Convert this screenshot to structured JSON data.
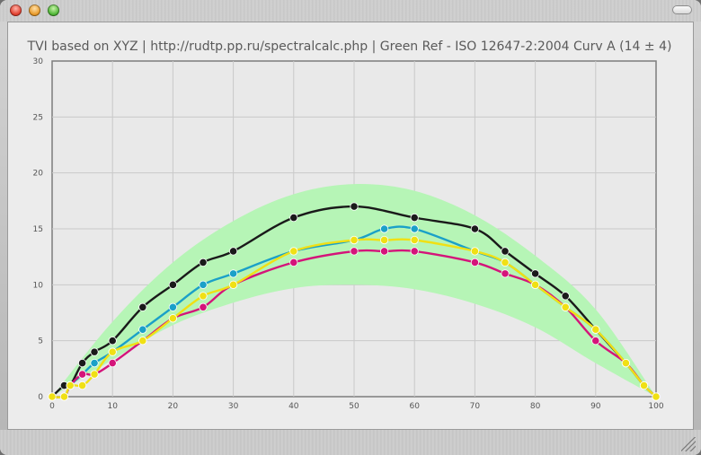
{
  "window": {
    "buttons": [
      "close",
      "minimize",
      "zoom"
    ]
  },
  "chart_data": {
    "type": "line",
    "title": "TVI based on XYZ | http://rudtp.pp.ru/spectralcalc.php | Green Ref - ISO 12647-2:2004 Curv A (14 ± 4)",
    "xlabel": "",
    "ylabel": "",
    "xlim": [
      0,
      100
    ],
    "ylim": [
      0,
      30
    ],
    "x_ticks": [
      0,
      10,
      20,
      30,
      40,
      50,
      60,
      70,
      80,
      90,
      100
    ],
    "y_ticks": [
      0,
      5,
      10,
      15,
      20,
      25,
      30
    ],
    "grid": true,
    "legend": "none",
    "tolerance_band": {
      "color": "#b6f5b6",
      "x": [
        0,
        10,
        20,
        30,
        40,
        50,
        60,
        70,
        80,
        90,
        100
      ],
      "lower": [
        0,
        3.3,
        6.4,
        8.4,
        9.7,
        10.0,
        9.6,
        8.3,
        6.2,
        3.0,
        0
      ],
      "upper": [
        0,
        6.7,
        12.0,
        15.7,
        18.1,
        19.0,
        18.4,
        16.2,
        12.6,
        7.8,
        0
      ]
    },
    "series": [
      {
        "color": "#1a1a1a",
        "points": [
          [
            0,
            0
          ],
          [
            2,
            1
          ],
          [
            3,
            1
          ],
          [
            5,
            3
          ],
          [
            7,
            4
          ],
          [
            10,
            5
          ],
          [
            15,
            8
          ],
          [
            20,
            10
          ],
          [
            25,
            12
          ],
          [
            30,
            13
          ],
          [
            40,
            16
          ],
          [
            50,
            17
          ],
          [
            60,
            16
          ],
          [
            70,
            15
          ],
          [
            75,
            13
          ],
          [
            80,
            11
          ],
          [
            85,
            9
          ],
          [
            90,
            6
          ],
          [
            95,
            3
          ],
          [
            98,
            1
          ],
          [
            100,
            0
          ]
        ]
      },
      {
        "color": "#1aa0c8",
        "points": [
          [
            0,
            0
          ],
          [
            2,
            0
          ],
          [
            3,
            1
          ],
          [
            5,
            2
          ],
          [
            7,
            3
          ],
          [
            10,
            4
          ],
          [
            15,
            6
          ],
          [
            20,
            8
          ],
          [
            25,
            10
          ],
          [
            30,
            11
          ],
          [
            40,
            13
          ],
          [
            50,
            14
          ],
          [
            55,
            15
          ],
          [
            60,
            15
          ],
          [
            70,
            13
          ],
          [
            75,
            12
          ],
          [
            80,
            10
          ],
          [
            85,
            8
          ],
          [
            90,
            6
          ],
          [
            95,
            3
          ],
          [
            98,
            1
          ],
          [
            100,
            0
          ]
        ]
      },
      {
        "color": "#d4147a",
        "points": [
          [
            0,
            0
          ],
          [
            2,
            0
          ],
          [
            3,
            1
          ],
          [
            5,
            2
          ],
          [
            7,
            2
          ],
          [
            10,
            3
          ],
          [
            15,
            5
          ],
          [
            20,
            7
          ],
          [
            25,
            8
          ],
          [
            30,
            10
          ],
          [
            40,
            12
          ],
          [
            50,
            13
          ],
          [
            55,
            13
          ],
          [
            60,
            13
          ],
          [
            70,
            12
          ],
          [
            75,
            11
          ],
          [
            80,
            10
          ],
          [
            85,
            8
          ],
          [
            90,
            5
          ],
          [
            95,
            3
          ],
          [
            98,
            1
          ],
          [
            100,
            0
          ]
        ]
      },
      {
        "color": "#f0e014",
        "points": [
          [
            0,
            0
          ],
          [
            2,
            0
          ],
          [
            3,
            1
          ],
          [
            5,
            1
          ],
          [
            7,
            2
          ],
          [
            10,
            4
          ],
          [
            15,
            5
          ],
          [
            20,
            7
          ],
          [
            25,
            9
          ],
          [
            30,
            10
          ],
          [
            40,
            13
          ],
          [
            50,
            14
          ],
          [
            55,
            14
          ],
          [
            60,
            14
          ],
          [
            70,
            13
          ],
          [
            75,
            12
          ],
          [
            80,
            10
          ],
          [
            85,
            8
          ],
          [
            90,
            6
          ],
          [
            95,
            3
          ],
          [
            98,
            1
          ],
          [
            100,
            0
          ]
        ]
      }
    ]
  }
}
